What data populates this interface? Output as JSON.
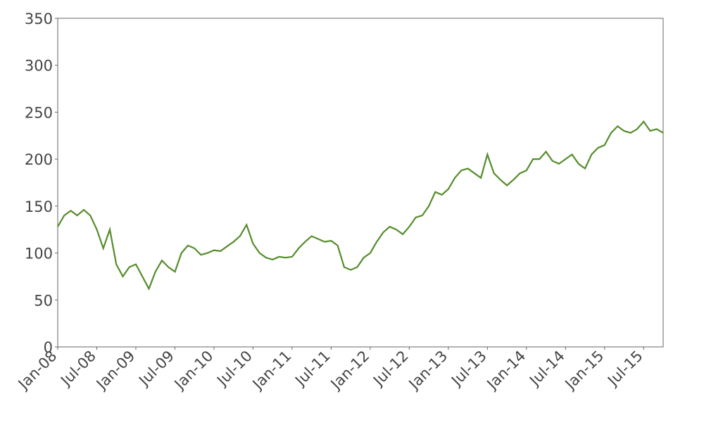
{
  "chart_data": {
    "type": "line",
    "x": [
      "2008-01",
      "2008-02",
      "2008-03",
      "2008-04",
      "2008-05",
      "2008-06",
      "2008-07",
      "2008-08",
      "2008-09",
      "2008-10",
      "2008-11",
      "2008-12",
      "2009-01",
      "2009-02",
      "2009-03",
      "2009-04",
      "2009-05",
      "2009-06",
      "2009-07",
      "2009-08",
      "2009-09",
      "2009-10",
      "2009-11",
      "2009-12",
      "2010-01",
      "2010-02",
      "2010-03",
      "2010-04",
      "2010-05",
      "2010-06",
      "2010-07",
      "2010-08",
      "2010-09",
      "2010-10",
      "2010-11",
      "2010-12",
      "2011-01",
      "2011-02",
      "2011-03",
      "2011-04",
      "2011-05",
      "2011-06",
      "2011-07",
      "2011-08",
      "2011-09",
      "2011-10",
      "2011-11",
      "2011-12",
      "2012-01",
      "2012-02",
      "2012-03",
      "2012-04",
      "2012-05",
      "2012-06",
      "2012-07",
      "2012-08",
      "2012-09",
      "2012-10",
      "2012-11",
      "2012-12",
      "2013-01",
      "2013-02",
      "2013-03",
      "2013-04",
      "2013-05",
      "2013-06",
      "2013-07",
      "2013-08",
      "2013-09",
      "2013-10",
      "2013-11",
      "2013-12",
      "2014-01",
      "2014-02",
      "2014-03",
      "2014-04",
      "2014-05",
      "2014-06",
      "2014-07",
      "2014-08",
      "2014-09",
      "2014-10",
      "2014-11",
      "2014-12",
      "2015-01",
      "2015-02",
      "2015-03",
      "2015-04",
      "2015-05",
      "2015-06",
      "2015-07",
      "2015-08",
      "2015-09",
      "2015-10"
    ],
    "series": [
      {
        "color": "#548c2a",
        "values": [
          128,
          140,
          145,
          140,
          146,
          140,
          125,
          105,
          125,
          88,
          75,
          85,
          88,
          75,
          62,
          80,
          92,
          85,
          80,
          100,
          108,
          105,
          98,
          100,
          103,
          102,
          107,
          112,
          118,
          130,
          110,
          100,
          95,
          93,
          96,
          95,
          96,
          105,
          112,
          118,
          115,
          112,
          113,
          108,
          85,
          82,
          85,
          95,
          100,
          112,
          122,
          128,
          125,
          120,
          128,
          138,
          140,
          150,
          165,
          162,
          168,
          180,
          188,
          190,
          185,
          180,
          205,
          185,
          178,
          172,
          178,
          185,
          188,
          200,
          200,
          208,
          198,
          195,
          200,
          205,
          195,
          190,
          205,
          212,
          215,
          228,
          235,
          230,
          228,
          232,
          240,
          230,
          232,
          228
        ]
      }
    ],
    "xlim": [
      "2008-01",
      "2015-10"
    ],
    "xticks": [
      {
        "value": "2008-01",
        "label": "Jan-08"
      },
      {
        "value": "2008-07",
        "label": "Jul-08"
      },
      {
        "value": "2009-01",
        "label": "Jan-09"
      },
      {
        "value": "2009-07",
        "label": "Jul-09"
      },
      {
        "value": "2010-01",
        "label": "Jan-10"
      },
      {
        "value": "2010-07",
        "label": "Jul-10"
      },
      {
        "value": "2011-01",
        "label": "Jan-11"
      },
      {
        "value": "2011-07",
        "label": "Jul-11"
      },
      {
        "value": "2012-01",
        "label": "Jan-12"
      },
      {
        "value": "2012-07",
        "label": "Jul-12"
      },
      {
        "value": "2013-01",
        "label": "Jan-13"
      },
      {
        "value": "2013-07",
        "label": "Jul-13"
      },
      {
        "value": "2014-01",
        "label": "Jan-14"
      },
      {
        "value": "2014-07",
        "label": "Jul-14"
      },
      {
        "value": "2015-01",
        "label": "Jan-15"
      },
      {
        "value": "2015-07",
        "label": "Jul-15"
      }
    ],
    "ylim": [
      0,
      350
    ],
    "yticks": [
      0,
      50,
      100,
      150,
      200,
      250,
      300,
      350
    ]
  }
}
